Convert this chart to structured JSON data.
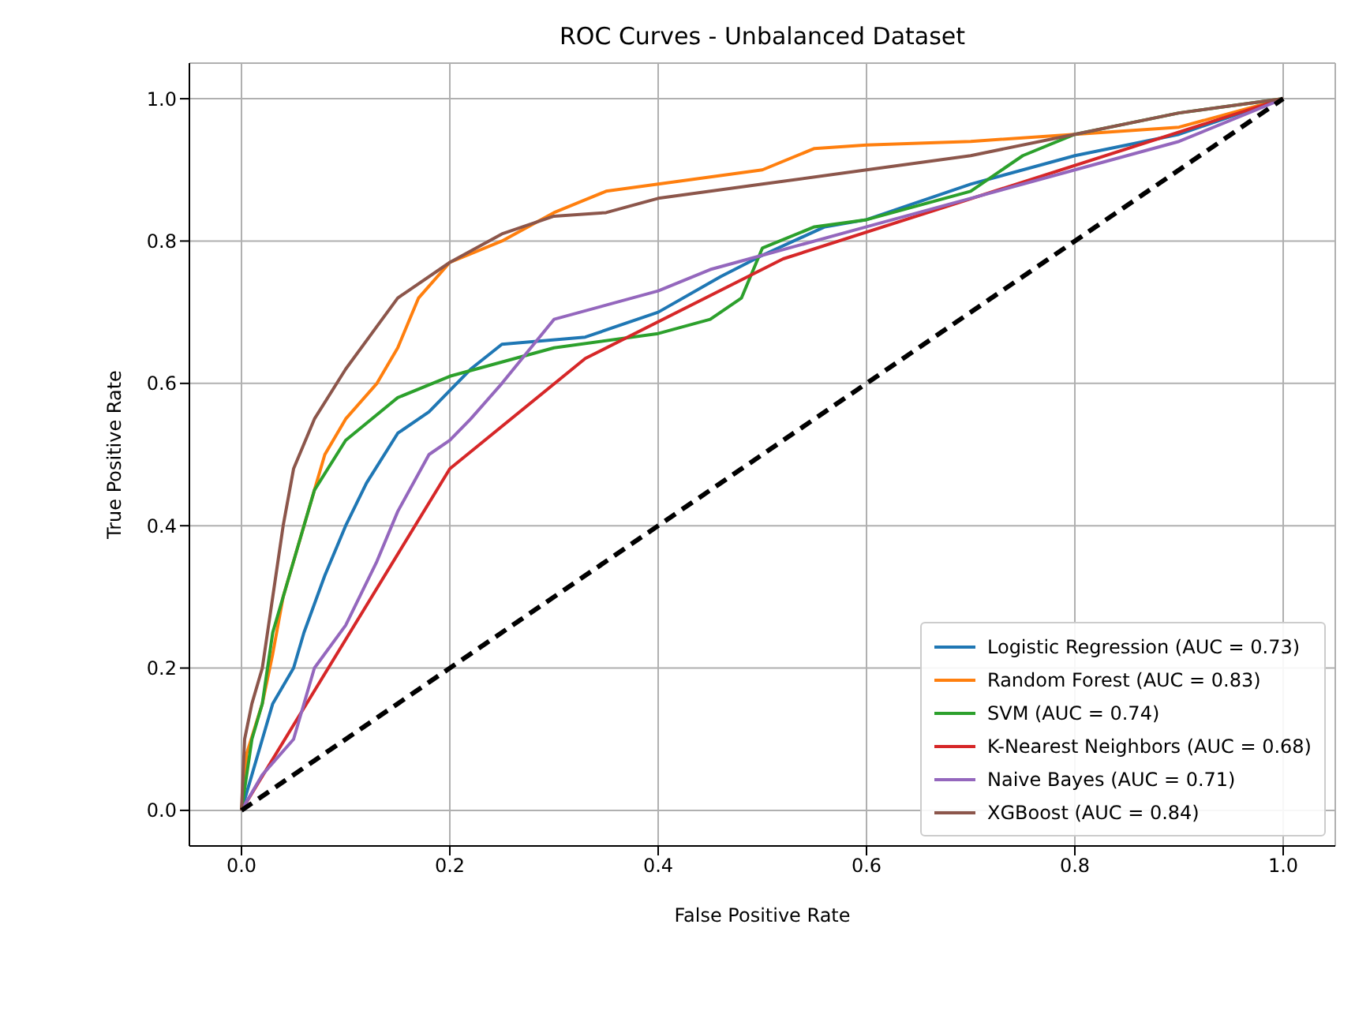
{
  "chart_data": {
    "type": "line",
    "title": "ROC Curves - Unbalanced Dataset",
    "xlabel": "False Positive Rate",
    "ylabel": "True Positive Rate",
    "xlim": [
      -0.05,
      1.05
    ],
    "ylim": [
      -0.05,
      1.05
    ],
    "xticks": [
      {
        "value": 0,
        "label": "0.0"
      },
      0.2,
      0.4,
      0.6,
      0.8,
      {
        "value": 1,
        "label": "1.0"
      }
    ],
    "yticks": [
      {
        "value": 0,
        "label": "0.0"
      },
      0.2,
      0.4,
      0.6,
      0.8,
      {
        "value": 1,
        "label": "1.0"
      }
    ],
    "grid": true,
    "legend": "bottom right",
    "marker": "none",
    "series": [
      {
        "name": "Logistic Regression (AUC = 0.73)",
        "color": "#1f77b4",
        "x": [
          0,
          0.01,
          0.02,
          0.03,
          0.05,
          0.06,
          0.08,
          0.1,
          0.12,
          0.15,
          0.18,
          0.22,
          0.25,
          0.33,
          0.4,
          0.46,
          0.5,
          0.56,
          0.6,
          0.7,
          0.8,
          0.9,
          1
        ],
        "values": [
          0,
          0.05,
          0.1,
          0.15,
          0.2,
          0.25,
          0.33,
          0.4,
          0.46,
          0.53,
          0.56,
          0.62,
          0.655,
          0.665,
          0.7,
          0.75,
          0.78,
          0.82,
          0.83,
          0.88,
          0.92,
          0.95,
          1
        ]
      },
      {
        "name": "Random Forest (AUC = 0.83)",
        "color": "#ff7f0e",
        "x": [
          0,
          0.005,
          0.02,
          0.03,
          0.04,
          0.06,
          0.08,
          0.1,
          0.13,
          0.15,
          0.17,
          0.2,
          0.25,
          0.3,
          0.35,
          0.4,
          0.5,
          0.55,
          0.6,
          0.7,
          0.8,
          0.9,
          1
        ],
        "values": [
          0,
          0.08,
          0.15,
          0.22,
          0.3,
          0.4,
          0.5,
          0.55,
          0.6,
          0.65,
          0.72,
          0.77,
          0.8,
          0.84,
          0.87,
          0.88,
          0.9,
          0.93,
          0.935,
          0.94,
          0.95,
          0.96,
          1
        ]
      },
      {
        "name": "SVM (AUC = 0.74)",
        "color": "#2ca02c",
        "x": [
          0,
          0.01,
          0.02,
          0.03,
          0.05,
          0.07,
          0.1,
          0.15,
          0.2,
          0.25,
          0.3,
          0.4,
          0.45,
          0.48,
          0.5,
          0.55,
          0.6,
          0.7,
          0.75,
          0.8,
          0.9,
          1
        ],
        "values": [
          0,
          0.1,
          0.15,
          0.25,
          0.35,
          0.45,
          0.52,
          0.58,
          0.61,
          0.63,
          0.65,
          0.67,
          0.69,
          0.72,
          0.79,
          0.82,
          0.83,
          0.87,
          0.92,
          0.95,
          0.98,
          1
        ]
      },
      {
        "name": "K-Nearest Neighbors (AUC = 0.68)",
        "color": "#d62728",
        "x": [
          0,
          0.2,
          0.33,
          0.52,
          1
        ],
        "values": [
          0,
          0.48,
          0.635,
          0.775,
          1
        ]
      },
      {
        "name": "Naive Bayes (AUC = 0.71)",
        "color": "#9467bd",
        "x": [
          0,
          0.02,
          0.05,
          0.07,
          0.1,
          0.13,
          0.15,
          0.18,
          0.2,
          0.22,
          0.25,
          0.3,
          0.35,
          0.4,
          0.45,
          0.5,
          0.6,
          0.7,
          0.8,
          0.9,
          1
        ],
        "values": [
          0,
          0.05,
          0.1,
          0.2,
          0.26,
          0.35,
          0.42,
          0.5,
          0.52,
          0.55,
          0.6,
          0.69,
          0.71,
          0.73,
          0.76,
          0.78,
          0.82,
          0.86,
          0.9,
          0.94,
          1
        ]
      },
      {
        "name": "XGBoost (AUC = 0.84)",
        "color": "#8c564b",
        "x": [
          0,
          0.003,
          0.01,
          0.02,
          0.03,
          0.04,
          0.05,
          0.07,
          0.1,
          0.13,
          0.15,
          0.2,
          0.25,
          0.3,
          0.35,
          0.4,
          0.5,
          0.6,
          0.7,
          0.8,
          0.9,
          1
        ],
        "values": [
          0,
          0.1,
          0.15,
          0.2,
          0.3,
          0.4,
          0.48,
          0.55,
          0.62,
          0.68,
          0.72,
          0.77,
          0.81,
          0.835,
          0.84,
          0.86,
          0.88,
          0.9,
          0.92,
          0.95,
          0.98,
          1
        ]
      },
      {
        "color": "#000000",
        "line_style": "dashed",
        "x": [
          0,
          1
        ],
        "values": [
          0,
          1
        ]
      }
    ]
  }
}
